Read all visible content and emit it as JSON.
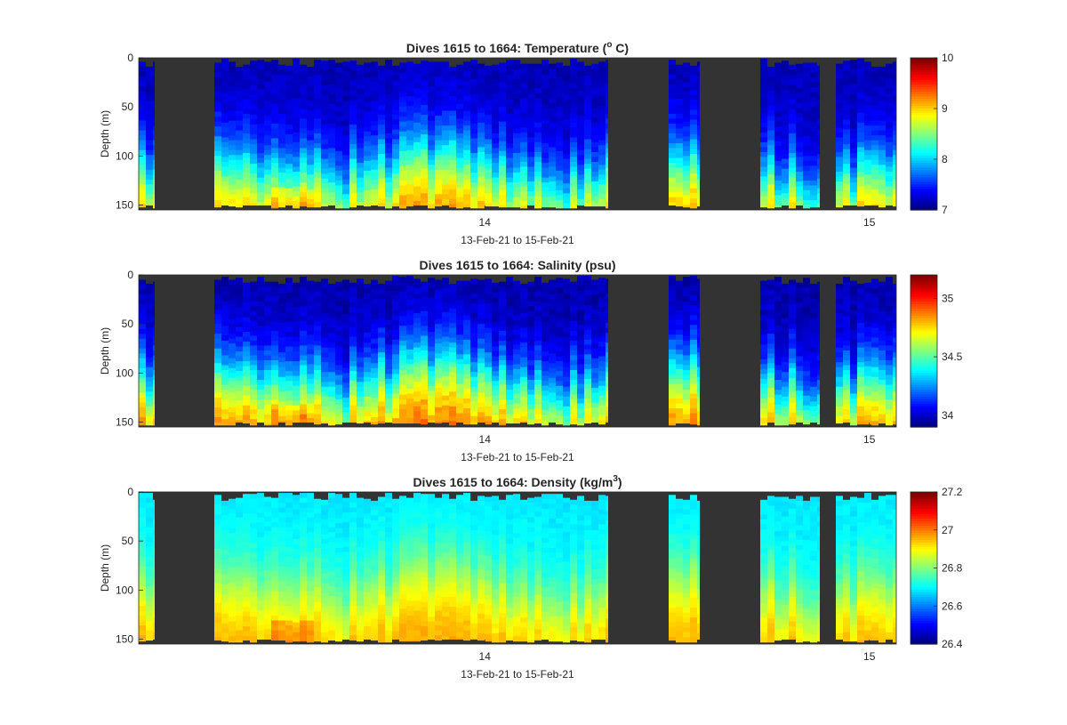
{
  "colormap": "jet",
  "gap_color": "#333333",
  "chart_data": [
    {
      "type": "heatmap",
      "title_main": "Dives 1615 to 1664: Temperature (",
      "title_sup": "o",
      "title_tail": " C)",
      "xlabel": "13-Feb-21 to 15-Feb-21",
      "ylabel": "Depth (m)",
      "y_ticks": [
        "0",
        "50",
        "100",
        "150"
      ],
      "y_tick_values": [
        0,
        50,
        100,
        150
      ],
      "ylim": [
        0,
        155
      ],
      "x_ticks": [
        "14",
        "15"
      ],
      "x_tick_values": [
        14,
        15
      ],
      "xlim": [
        13.1,
        15.07
      ],
      "clim": [
        7,
        10
      ],
      "colorbar_ticks": [
        "7",
        "8",
        "9",
        "10"
      ],
      "colorbar_tick_values": [
        7,
        8,
        9,
        10
      ],
      "surface_value": 7.15,
      "bottom_value": 9.35,
      "thermocline_depth": 118,
      "profile_strength": 1.0
    },
    {
      "type": "heatmap",
      "title_main": "Dives 1615 to 1664: Salinity (psu)",
      "title_sup": "",
      "title_tail": "",
      "xlabel": "13-Feb-21 to 15-Feb-21",
      "ylabel": "Depth (m)",
      "y_ticks": [
        "0",
        "50",
        "100",
        "150"
      ],
      "y_tick_values": [
        0,
        50,
        100,
        150
      ],
      "ylim": [
        0,
        155
      ],
      "x_ticks": [
        "14",
        "15"
      ],
      "x_tick_values": [
        14,
        15
      ],
      "xlim": [
        13.1,
        15.07
      ],
      "clim": [
        33.9,
        35.2
      ],
      "colorbar_ticks": [
        "34",
        "34.5",
        "35"
      ],
      "colorbar_tick_values": [
        34,
        34.5,
        35
      ],
      "surface_value": 33.95,
      "bottom_value": 34.95,
      "thermocline_depth": 110,
      "profile_strength": 1.0
    },
    {
      "type": "heatmap",
      "title_main": "Dives 1615 to 1664: Density (kg/m",
      "title_sup": "3",
      "title_tail": ")",
      "xlabel": "13-Feb-21 to 15-Feb-21",
      "ylabel": "Depth (m)",
      "y_ticks": [
        "0",
        "50",
        "100",
        "150"
      ],
      "y_tick_values": [
        0,
        50,
        100,
        150
      ],
      "ylim": [
        0,
        155
      ],
      "x_ticks": [
        "14",
        "15"
      ],
      "x_tick_values": [
        14,
        15
      ],
      "xlim": [
        13.1,
        15.07
      ],
      "clim": [
        26.4,
        27.2
      ],
      "colorbar_ticks": [
        "26.4",
        "26.6",
        "26.8",
        "27",
        "27.2"
      ],
      "colorbar_tick_values": [
        26.4,
        26.6,
        26.8,
        27,
        27.2
      ],
      "surface_value": 26.68,
      "bottom_value": 26.98,
      "thermocline_depth": 100,
      "profile_strength": 1.0
    }
  ]
}
